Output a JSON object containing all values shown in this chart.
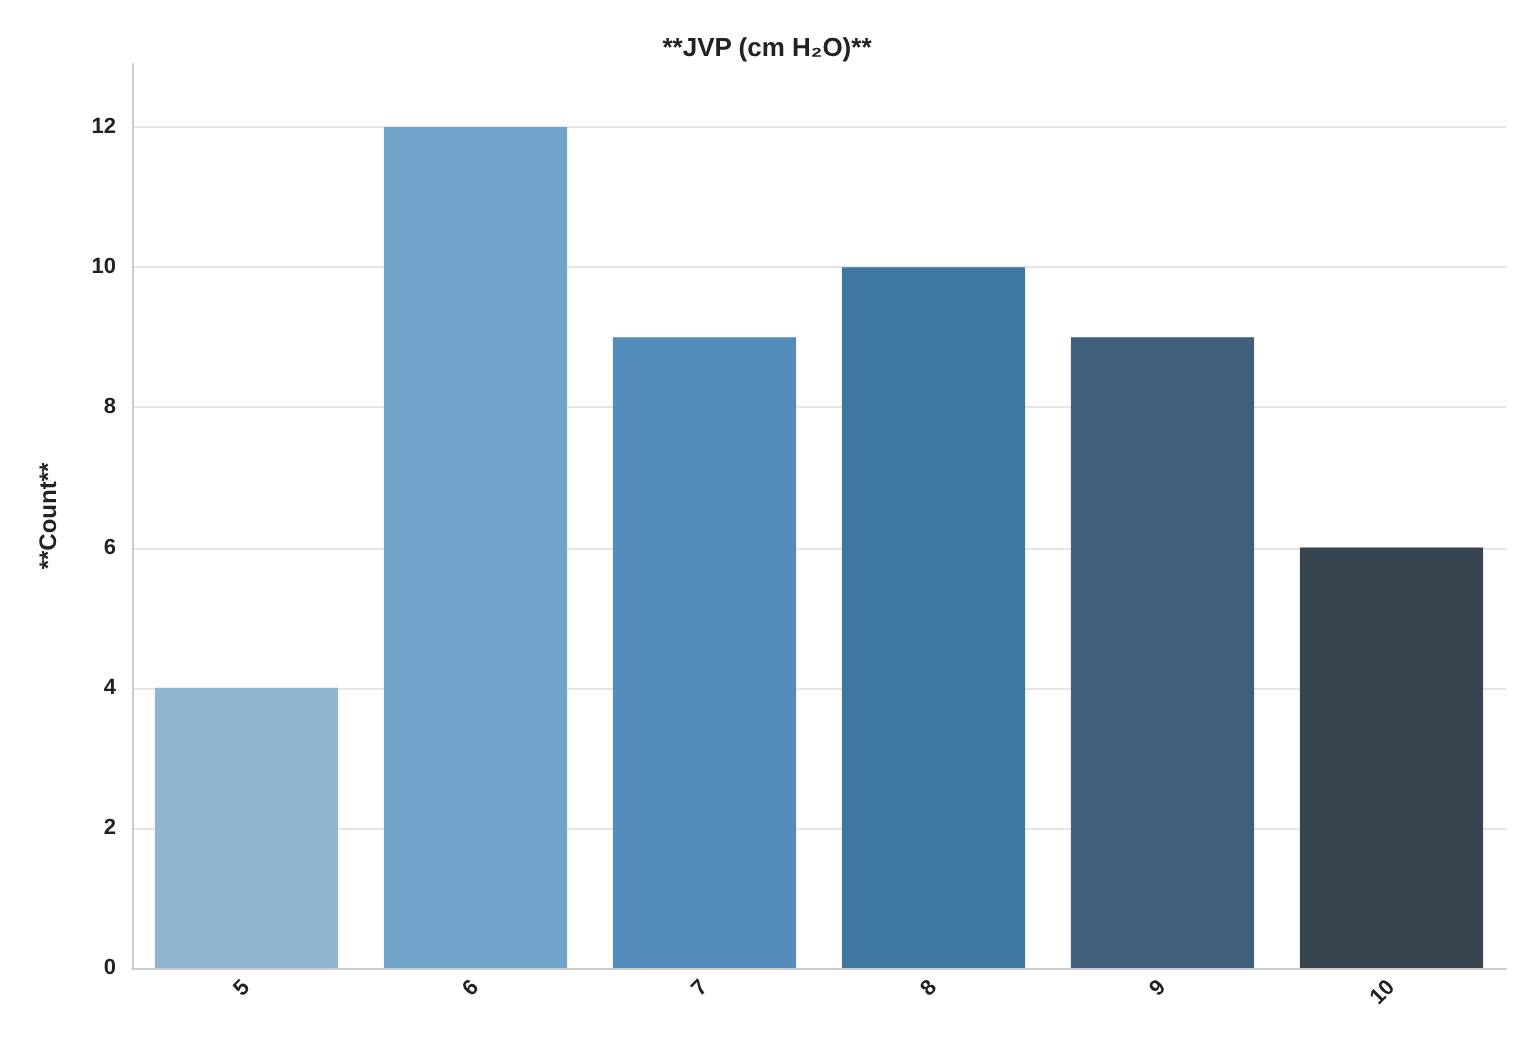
{
  "chart_data": {
    "type": "bar",
    "title": "**JVP (cm H₂O)**",
    "ylabel": "**Count**",
    "categories": [
      "5",
      "6",
      "7",
      "8",
      "9",
      "10"
    ],
    "values": [
      4,
      12,
      9,
      10,
      9,
      6
    ],
    "colors": [
      "#91b6d2",
      "#70a4c8",
      "#548cbb",
      "#3e77a0",
      "#3f5f7b",
      "#36454f"
    ],
    "ylim": [
      0,
      12.9
    ],
    "yticks": [
      0,
      2,
      4,
      6,
      8,
      10,
      12
    ],
    "grid": "y"
  }
}
